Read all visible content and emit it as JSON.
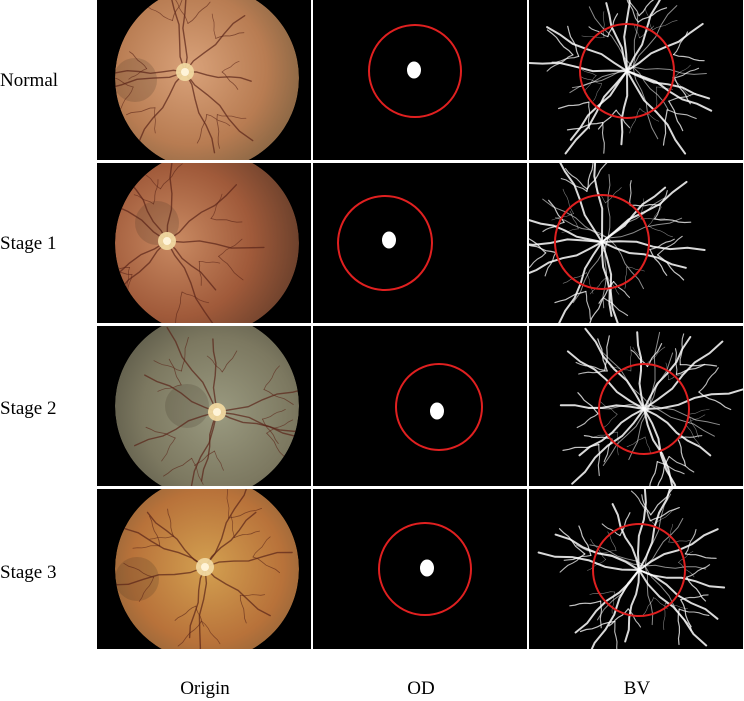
{
  "row_labels": [
    "Normal",
    "Stage 1",
    "Stage 2",
    "Stage 3"
  ],
  "column_labels": [
    "Origin",
    "OD",
    "BV"
  ],
  "colors": {
    "background": "#000000",
    "separator": "#ffffff",
    "roi_circle": "#e02020",
    "optic_disc_mask": "#ffffff",
    "vessel": "#ffffff"
  }
}
